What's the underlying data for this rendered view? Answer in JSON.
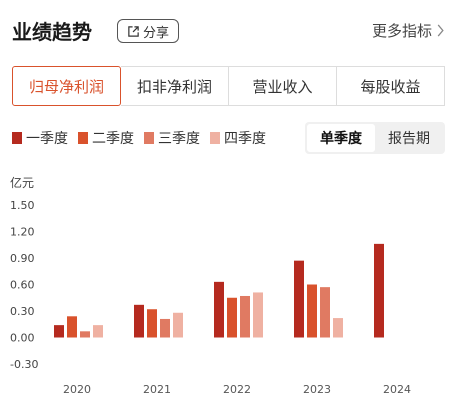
{
  "header": {
    "title": "业绩趋势",
    "share_label": "分享",
    "more_label": "更多指标"
  },
  "tabs": [
    {
      "label": "归母净利润",
      "active": true
    },
    {
      "label": "扣非净利润",
      "active": false
    },
    {
      "label": "营业收入",
      "active": false
    },
    {
      "label": "每股收益",
      "active": false
    }
  ],
  "legend": [
    {
      "label": "一季度",
      "color": "#b52a1f"
    },
    {
      "label": "二季度",
      "color": "#d9522c"
    },
    {
      "label": "三季度",
      "color": "#e07a62"
    },
    {
      "label": "四季度",
      "color": "#efb1a2"
    }
  ],
  "period_toggle": [
    {
      "label": "单季度",
      "active": true
    },
    {
      "label": "报告期",
      "active": false
    }
  ],
  "unit_label": "亿元",
  "chart_data": {
    "type": "bar",
    "categories": [
      "2020",
      "2021",
      "2022",
      "2023",
      "2024"
    ],
    "series": [
      {
        "name": "一季度",
        "values": [
          0.14,
          0.37,
          0.63,
          0.87,
          1.06
        ]
      },
      {
        "name": "二季度",
        "values": [
          0.24,
          0.32,
          0.45,
          0.6,
          null
        ]
      },
      {
        "name": "三季度",
        "values": [
          0.07,
          0.21,
          0.47,
          0.57,
          null
        ]
      },
      {
        "name": "四季度",
        "values": [
          0.14,
          0.28,
          0.51,
          0.22,
          null
        ]
      }
    ],
    "yticks": [
      "1.50",
      "1.20",
      "0.90",
      "0.60",
      "0.30",
      "0.00",
      "-0.30"
    ],
    "ylim": [
      -0.3,
      1.5
    ],
    "ylabel": "亿元",
    "grid": false,
    "legend_position": "top-left",
    "colors": [
      "#b52a1f",
      "#d9522c",
      "#e07a62",
      "#efb1a2"
    ]
  }
}
